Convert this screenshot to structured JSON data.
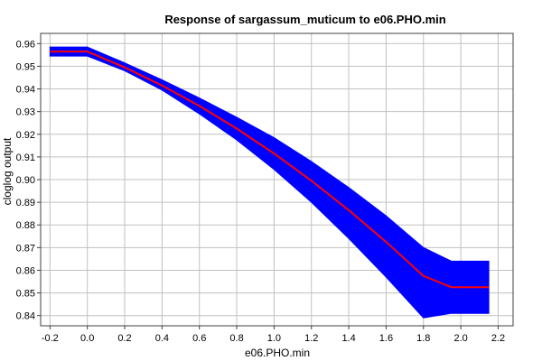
{
  "chart_data": {
    "type": "line",
    "title": "Response of sargassum_muticum to e06.PHO.min",
    "xlabel": "e06.PHO.min",
    "ylabel": "cloglog output",
    "xlim": [
      -0.25,
      2.28
    ],
    "ylim": [
      0.8355,
      0.9645
    ],
    "grid": true,
    "xticks": [
      "-0.2",
      "0.0",
      "0.2",
      "0.4",
      "0.6",
      "0.8",
      "1.0",
      "1.2",
      "1.4",
      "1.6",
      "1.8",
      "2.0",
      "2.2"
    ],
    "yticks": [
      "0.84",
      "0.85",
      "0.86",
      "0.87",
      "0.88",
      "0.89",
      "0.90",
      "0.91",
      "0.92",
      "0.93",
      "0.94",
      "0.95",
      "0.96"
    ],
    "colors": {
      "mean_line": "#ff0000",
      "band": "#0000ff",
      "grid": "#c0c0c0",
      "frame": "#404040"
    },
    "series": [
      {
        "role": "mean",
        "x": [
          -0.2,
          0.0,
          0.2,
          0.4,
          0.6,
          0.8,
          1.0,
          1.2,
          1.4,
          1.6,
          1.8,
          1.95,
          2.15
        ],
        "y": [
          0.9565,
          0.9565,
          0.9495,
          0.9415,
          0.9325,
          0.9225,
          0.9115,
          0.8995,
          0.8865,
          0.8725,
          0.8575,
          0.8525,
          0.8525
        ]
      },
      {
        "role": "band",
        "x": [
          -0.2,
          0.0,
          0.2,
          0.4,
          0.6,
          0.8,
          1.0,
          1.2,
          1.4,
          1.6,
          1.8,
          1.95,
          2.15
        ],
        "lower": [
          0.9545,
          0.9545,
          0.948,
          0.9395,
          0.929,
          0.9175,
          0.9045,
          0.89,
          0.874,
          0.857,
          0.839,
          0.841,
          0.841
        ],
        "upper": [
          0.9585,
          0.9585,
          0.9515,
          0.944,
          0.936,
          0.9275,
          0.9185,
          0.908,
          0.8965,
          0.884,
          0.87,
          0.864,
          0.864
        ]
      }
    ]
  }
}
